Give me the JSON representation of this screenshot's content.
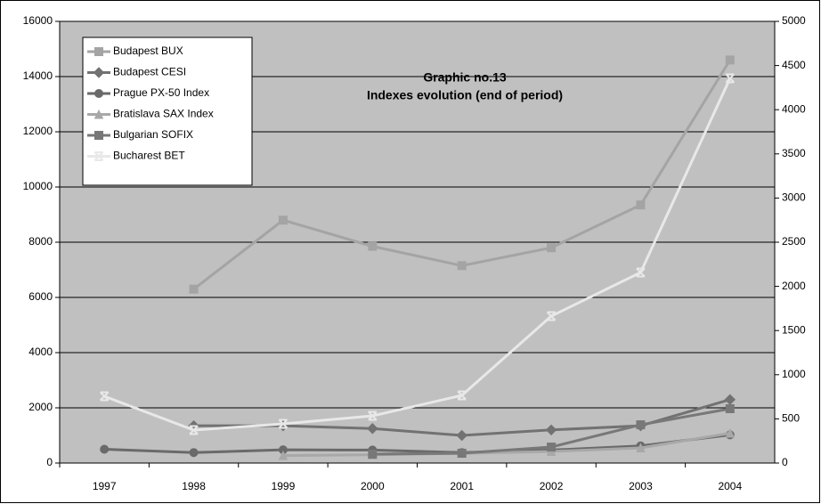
{
  "chart_data": {
    "type": "line",
    "title": "Graphic no.13",
    "subtitle": "Indexes evolution (end of period)",
    "categories": [
      "1997",
      "1998",
      "1999",
      "2000",
      "2001",
      "2002",
      "2003",
      "2004"
    ],
    "ylim": [
      0,
      16000
    ],
    "yticks": [
      0,
      2000,
      4000,
      6000,
      8000,
      10000,
      12000,
      14000,
      16000
    ],
    "y2lim": [
      0,
      5000
    ],
    "y2ticks": [
      0,
      500,
      1000,
      1500,
      2000,
      2500,
      3000,
      3500,
      4000,
      4500,
      5000
    ],
    "grid": true,
    "legend": "top-left",
    "series": [
      {
        "name": "Budapest BUX",
        "color": "#a4a4a4",
        "marker": "square",
        "values": [
          null,
          6300,
          8800,
          7850,
          7150,
          7800,
          9350,
          14600
        ]
      },
      {
        "name": "Budapest CESI",
        "color": "#727272",
        "marker": "diamond",
        "values": [
          null,
          1350,
          1350,
          1250,
          1000,
          1200,
          1350,
          2300
        ]
      },
      {
        "name": "Prague PX-50 Index",
        "color": "#6a6a6a",
        "marker": "circle",
        "values": [
          500,
          380,
          480,
          470,
          380,
          470,
          620,
          1020
        ]
      },
      {
        "name": "Bratislava SAX Index",
        "color": "#a8a8a8",
        "marker": "triangle",
        "values": [
          null,
          null,
          270,
          300,
          350,
          420,
          550,
          1080
        ]
      },
      {
        "name": "Bulgarian SOFIX",
        "color": "#787878",
        "marker": "square",
        "axis": "y2",
        "values": [
          null,
          null,
          null,
          101,
          111,
          181,
          433,
          615
        ]
      },
      {
        "name": "Bucharest BET",
        "color": "#e8e8e8",
        "marker": "x",
        "axis": "y2",
        "values": [
          756,
          373,
          444,
          534,
          766,
          1663,
          2157,
          4355
        ]
      }
    ]
  }
}
